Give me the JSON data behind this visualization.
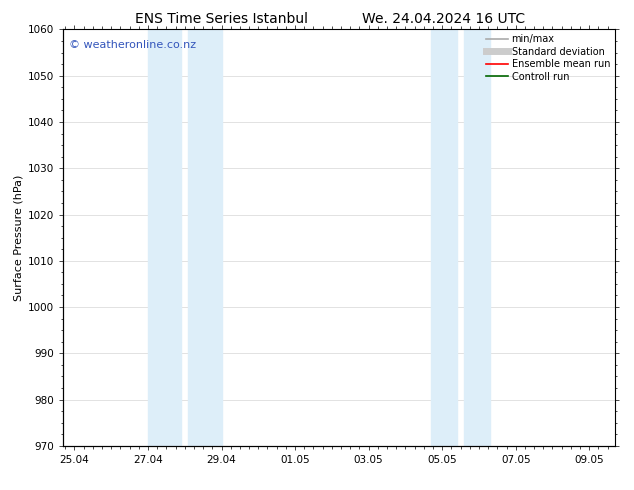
{
  "title_left": "ENS Time Series Istanbul",
  "title_right": "We. 24.04.2024 16 UTC",
  "ylabel": "Surface Pressure (hPa)",
  "ylim": [
    970,
    1060
  ],
  "yticks": [
    970,
    980,
    990,
    1000,
    1010,
    1020,
    1030,
    1040,
    1050,
    1060
  ],
  "xtick_labels": [
    "25.04",
    "27.04",
    "29.04",
    "01.05",
    "03.05",
    "05.05",
    "07.05",
    "09.05"
  ],
  "xtick_positions": [
    0,
    2,
    4,
    6,
    8,
    10,
    12,
    14
  ],
  "xlim": [
    -0.3,
    14.7
  ],
  "shaded_bands": [
    {
      "x_start": 2.0,
      "x_end": 2.9,
      "color": "#ddeef9"
    },
    {
      "x_start": 3.1,
      "x_end": 4.0,
      "color": "#ddeef9"
    },
    {
      "x_start": 9.7,
      "x_end": 10.4,
      "color": "#ddeef9"
    },
    {
      "x_start": 10.6,
      "x_end": 11.3,
      "color": "#ddeef9"
    }
  ],
  "watermark_text": "© weatheronline.co.nz",
  "watermark_color": "#3355bb",
  "watermark_fontsize": 8,
  "legend_items": [
    {
      "label": "min/max",
      "color": "#aaaaaa",
      "lw": 1.2,
      "ls": "-"
    },
    {
      "label": "Standard deviation",
      "color": "#cccccc",
      "lw": 5,
      "ls": "-"
    },
    {
      "label": "Ensemble mean run",
      "color": "#ff0000",
      "lw": 1.2,
      "ls": "-"
    },
    {
      "label": "Controll run",
      "color": "#006600",
      "lw": 1.2,
      "ls": "-"
    }
  ],
  "bg_color": "#ffffff",
  "grid_color": "#dddddd",
  "title_fontsize": 10,
  "axis_fontsize": 8,
  "tick_fontsize": 7.5,
  "legend_fontsize": 7
}
